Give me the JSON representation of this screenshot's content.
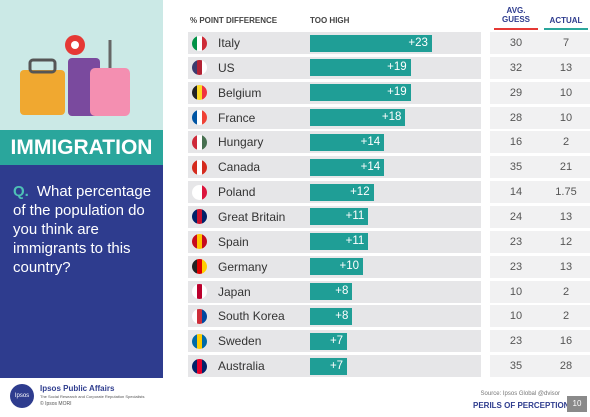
{
  "panel": {
    "title": "IMMIGRATION",
    "question_prefix": "Q.",
    "question": "What percentage of the population do you think are immigrants to this country?"
  },
  "chart_data": {
    "type": "bar",
    "category_header": "% POINT DIFFERENCE",
    "value_header": "TOO HIGH",
    "categories": [
      "Italy",
      "US",
      "Belgium",
      "France",
      "Hungary",
      "Canada",
      "Poland",
      "Great Britain",
      "Spain",
      "Germany",
      "Japan",
      "South Korea",
      "Sweden",
      "Australia"
    ],
    "values": [
      23,
      19,
      19,
      18,
      14,
      14,
      12,
      11,
      11,
      10,
      8,
      8,
      7,
      7
    ],
    "value_labels": [
      "+23",
      "+19",
      "+19",
      "+18",
      "+14",
      "+14",
      "+12",
      "+11",
      "+11",
      "+10",
      "+8",
      "+8",
      "+7",
      "+7"
    ],
    "color": "#1f9e96",
    "table": {
      "headers": [
        "AVG. GUESS",
        "ACTUAL"
      ],
      "rows": [
        [
          30,
          7
        ],
        [
          32,
          13
        ],
        [
          29,
          10
        ],
        [
          28,
          10
        ],
        [
          16,
          2
        ],
        [
          35,
          21
        ],
        [
          14,
          1.75
        ],
        [
          24,
          13
        ],
        [
          23,
          12
        ],
        [
          23,
          13
        ],
        [
          10,
          2
        ],
        [
          10,
          2
        ],
        [
          23,
          16
        ],
        [
          35,
          28
        ]
      ]
    }
  },
  "footer": {
    "brand": "Ipsos Public Affairs",
    "tagline": "The Social Research and Corporate Reputation Specialists",
    "copyright": "© Ipsos MORI",
    "logo": "Ipsos",
    "source": "Source: Ipsos Global @dvisor",
    "series_name": "PERILS OF PERCEPTION",
    "page": 10
  }
}
